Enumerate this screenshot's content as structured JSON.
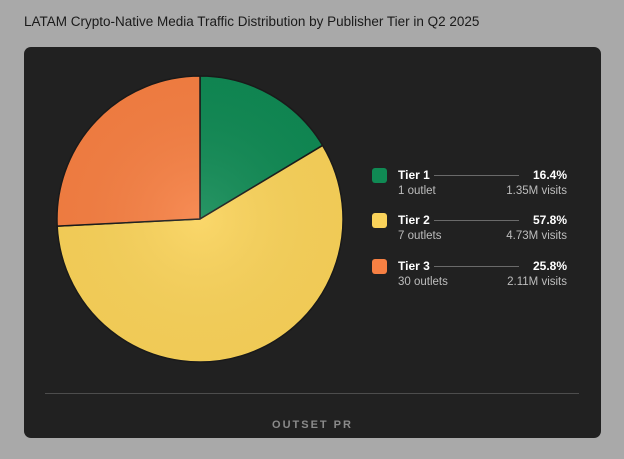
{
  "chart_data": {
    "type": "pie",
    "title": "LATAM Crypto-Native Media Traffic Distribution by Publisher Tier in Q2 2025",
    "slices": [
      {
        "label": "Tier 1",
        "percent": 16.4,
        "percent_label": "16.4%",
        "outlets_label": "1 outlet",
        "visits_label": "1.35M visits",
        "color": "#108a54"
      },
      {
        "label": "Tier 2",
        "percent": 57.8,
        "percent_label": "57.8%",
        "outlets_label": "7 outlets",
        "visits_label": "4.73M visits",
        "color": "#fad35a"
      },
      {
        "label": "Tier 3",
        "percent": 25.8,
        "percent_label": "25.8%",
        "outlets_label": "30 outlets",
        "visits_label": "2.11M visits",
        "color": "#f78043"
      }
    ],
    "start_angle": "top, clockwise",
    "legend_position": "right"
  },
  "footer": {
    "brand": "OUTSET PR"
  },
  "colors": {
    "card_background": "#212121",
    "page_background": "#a9a9a9",
    "slice_border": "#1a1a1a"
  }
}
